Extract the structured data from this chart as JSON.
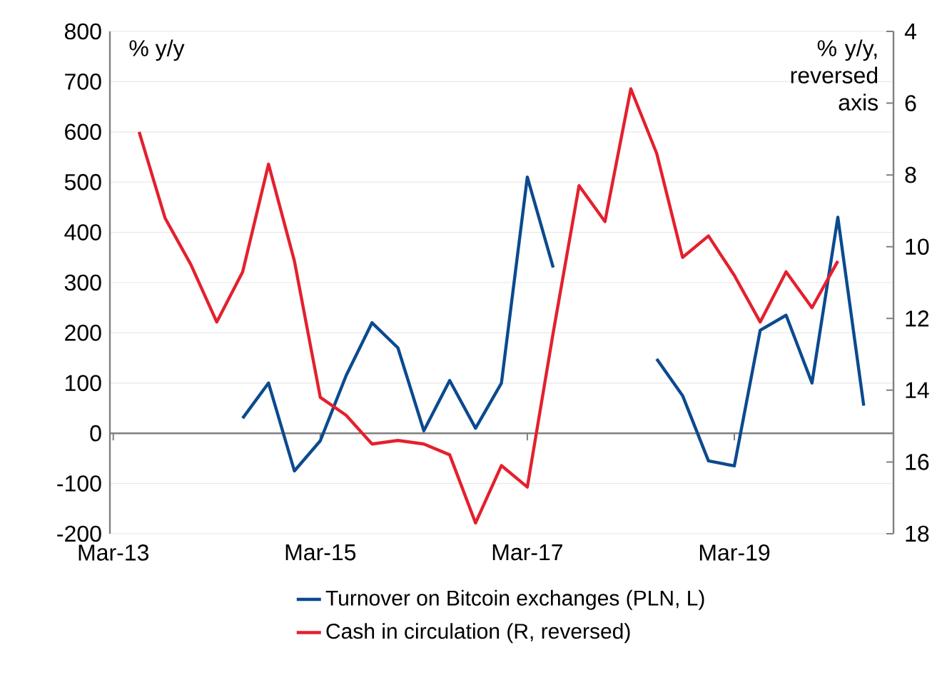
{
  "chart_data": {
    "type": "line",
    "ylabel": "% y/y",
    "y2label": "% y/y, reversed axis",
    "categories": [
      "Mar-13",
      null,
      null,
      null,
      null,
      null,
      null,
      null,
      "Mar-15",
      null,
      null,
      null,
      null,
      null,
      null,
      null,
      "Mar-17",
      null,
      null,
      null,
      null,
      null,
      null,
      null,
      "Mar-19",
      null,
      null,
      null,
      null,
      null
    ],
    "series": [
      {
        "name": "Turnover on Bitcoin exchanges (PLN, L)",
        "color": "#0b4a8f",
        "values": [
          null,
          null,
          null,
          null,
          null,
          30,
          100,
          -75,
          -15,
          115,
          220,
          170,
          5,
          105,
          10,
          100,
          510,
          330,
          null,
          null,
          null,
          148,
          75,
          -55,
          -65,
          205,
          235,
          100,
          430,
          55
        ]
      },
      {
        "name": "Cash in circulation (R, reversed)",
        "color": "#e4202e",
        "axis": "y2",
        "values": [
          null,
          6.8,
          9.2,
          10.5,
          12.1,
          10.7,
          7.7,
          10.4,
          14.2,
          14.7,
          15.5,
          15.4,
          15.5,
          15.8,
          17.7,
          16.1,
          16.7,
          12.4,
          8.3,
          9.3,
          5.6,
          7.4,
          10.3,
          9.7,
          10.8,
          12.1,
          10.7,
          11.7,
          10.4,
          null
        ]
      }
    ],
    "ylim": [
      -200,
      800
    ],
    "yticks": [
      -200,
      -100,
      0,
      100,
      200,
      300,
      400,
      500,
      600,
      700,
      800
    ],
    "y2lim": [
      18,
      4
    ],
    "y2ticks": [
      4,
      6,
      8,
      10,
      12,
      14,
      16,
      18
    ],
    "grid": "y",
    "legend": "bottom"
  }
}
